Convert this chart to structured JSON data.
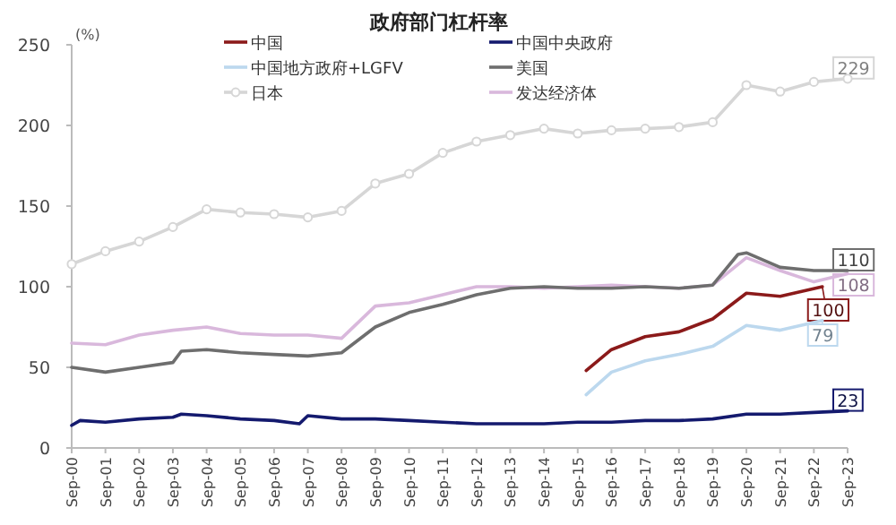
{
  "chart_data": {
    "type": "line",
    "title": "政府部门杠杆率",
    "ylabel": "(%)",
    "xlim": [
      "2000-09",
      "2023-09"
    ],
    "xticks": [
      {
        "value": "2000-09",
        "label": "Sep-00"
      },
      {
        "value": "2001-09",
        "label": "Sep-01"
      },
      {
        "value": "2002-09",
        "label": "Sep-02"
      },
      {
        "value": "2003-09",
        "label": "Sep-03"
      },
      {
        "value": "2004-09",
        "label": "Sep-04"
      },
      {
        "value": "2005-09",
        "label": "Sep-05"
      },
      {
        "value": "2006-09",
        "label": "Sep-06"
      },
      {
        "value": "2007-09",
        "label": "Sep-07"
      },
      {
        "value": "2008-09",
        "label": "Sep-08"
      },
      {
        "value": "2009-09",
        "label": "Sep-09"
      },
      {
        "value": "2010-09",
        "label": "Sep-10"
      },
      {
        "value": "2011-09",
        "label": "Sep-11"
      },
      {
        "value": "2012-09",
        "label": "Sep-12"
      },
      {
        "value": "2013-09",
        "label": "Sep-13"
      },
      {
        "value": "2014-09",
        "label": "Sep-14"
      },
      {
        "value": "2015-09",
        "label": "Sep-15"
      },
      {
        "value": "2016-09",
        "label": "Sep-16"
      },
      {
        "value": "2017-09",
        "label": "Sep-17"
      },
      {
        "value": "2018-09",
        "label": "Sep-18"
      },
      {
        "value": "2019-09",
        "label": "Sep-19"
      },
      {
        "value": "2020-09",
        "label": "Sep-20"
      },
      {
        "value": "2021-09",
        "label": "Sep-21"
      },
      {
        "value": "2022-09",
        "label": "Sep-22"
      },
      {
        "value": "2023-09",
        "label": "Sep-23"
      }
    ],
    "ylim": [
      0,
      250
    ],
    "yticks": [
      0,
      50,
      100,
      150,
      200,
      250
    ],
    "grid": false,
    "legend": "top",
    "series": [
      {
        "name": "中国",
        "color": "#8b1a1a",
        "x": [
          "2015-12",
          "2016-09",
          "2017-09",
          "2018-09",
          "2019-09",
          "2020-09",
          "2021-09",
          "2022-12"
        ],
        "values": [
          48,
          61,
          69,
          72,
          80,
          96,
          94,
          100
        ],
        "value_labels": [
          null,
          null,
          null,
          null,
          null,
          null,
          null,
          "100"
        ]
      },
      {
        "name": "中国中央政府",
        "color": "#141a6e",
        "x": [
          "2000-09",
          "2000-12",
          "2001-09",
          "2002-09",
          "2003-09",
          "2003-12",
          "2004-09",
          "2005-09",
          "2006-09",
          "2007-06",
          "2007-09",
          "2008-09",
          "2009-09",
          "2010-09",
          "2011-09",
          "2012-09",
          "2013-09",
          "2014-09",
          "2015-09",
          "2016-09",
          "2017-09",
          "2018-09",
          "2019-09",
          "2020-09",
          "2021-09",
          "2022-09",
          "2023-09"
        ],
        "values": [
          14,
          17,
          16,
          18,
          19,
          21,
          20,
          18,
          17,
          15,
          20,
          18,
          18,
          17,
          16,
          15,
          15,
          15,
          16,
          16,
          17,
          17,
          18,
          21,
          21,
          22,
          23
        ],
        "value_labels": [
          null,
          null,
          null,
          null,
          null,
          null,
          null,
          null,
          null,
          null,
          null,
          null,
          null,
          null,
          null,
          null,
          null,
          null,
          null,
          null,
          null,
          null,
          null,
          null,
          null,
          null,
          "23"
        ]
      },
      {
        "name": "中国地方政府+LGFV",
        "color": "#bcd8ee",
        "x": [
          "2015-12",
          "2016-09",
          "2017-09",
          "2018-09",
          "2019-09",
          "2020-09",
          "2021-09",
          "2022-12"
        ],
        "values": [
          33,
          47,
          54,
          58,
          63,
          76,
          73,
          79
        ],
        "value_labels": [
          null,
          null,
          null,
          null,
          null,
          null,
          null,
          "79"
        ]
      },
      {
        "name": "美国",
        "color": "#6e6e6e",
        "x": [
          "2000-09",
          "2001-09",
          "2002-09",
          "2003-09",
          "2003-12",
          "2004-09",
          "2005-09",
          "2006-09",
          "2007-09",
          "2008-09",
          "2009-09",
          "2010-09",
          "2011-09",
          "2012-09",
          "2013-09",
          "2014-09",
          "2015-09",
          "2016-09",
          "2017-09",
          "2018-09",
          "2019-09",
          "2020-06",
          "2020-09",
          "2021-09",
          "2022-09",
          "2023-09"
        ],
        "values": [
          50,
          47,
          50,
          53,
          60,
          61,
          59,
          58,
          57,
          59,
          75,
          84,
          89,
          95,
          99,
          100,
          99,
          99,
          100,
          99,
          101,
          120,
          121,
          112,
          110,
          110
        ],
        "value_labels": [
          null,
          null,
          null,
          null,
          null,
          null,
          null,
          null,
          null,
          null,
          null,
          null,
          null,
          null,
          null,
          null,
          null,
          null,
          null,
          null,
          null,
          null,
          null,
          null,
          null,
          "110"
        ]
      },
      {
        "name": "日本",
        "color": "#d6d6d6",
        "marker": "circle",
        "x": [
          "2000-09",
          "2001-09",
          "2002-09",
          "2003-09",
          "2004-09",
          "2005-09",
          "2006-09",
          "2007-09",
          "2008-09",
          "2009-09",
          "2010-09",
          "2011-09",
          "2012-09",
          "2013-09",
          "2014-09",
          "2015-09",
          "2016-09",
          "2017-09",
          "2018-09",
          "2019-09",
          "2020-09",
          "2021-09",
          "2022-09",
          "2023-09"
        ],
        "values": [
          114,
          122,
          128,
          137,
          148,
          146,
          145,
          143,
          147,
          164,
          170,
          183,
          190,
          194,
          198,
          195,
          197,
          198,
          199,
          202,
          225,
          221,
          227,
          229
        ],
        "value_labels": [
          null,
          null,
          null,
          null,
          null,
          null,
          null,
          null,
          null,
          null,
          null,
          null,
          null,
          null,
          null,
          null,
          null,
          null,
          null,
          null,
          null,
          null,
          null,
          "229"
        ]
      },
      {
        "name": "发达经济体",
        "color": "#d9b8dc",
        "x": [
          "2000-09",
          "2001-09",
          "2002-09",
          "2003-09",
          "2004-09",
          "2005-09",
          "2006-09",
          "2007-09",
          "2008-09",
          "2009-09",
          "2010-09",
          "2011-09",
          "2012-09",
          "2013-09",
          "2014-09",
          "2015-09",
          "2016-09",
          "2017-09",
          "2018-09",
          "2019-09",
          "2020-09",
          "2021-09",
          "2022-09",
          "2023-09"
        ],
        "values": [
          65,
          64,
          70,
          73,
          75,
          71,
          70,
          70,
          68,
          88,
          90,
          95,
          100,
          100,
          99,
          100,
          101,
          100,
          99,
          101,
          118,
          110,
          103,
          108
        ],
        "value_labels": [
          null,
          null,
          null,
          null,
          null,
          null,
          null,
          null,
          null,
          null,
          null,
          null,
          null,
          null,
          null,
          null,
          null,
          null,
          null,
          null,
          null,
          null,
          null,
          "108"
        ]
      }
    ]
  }
}
